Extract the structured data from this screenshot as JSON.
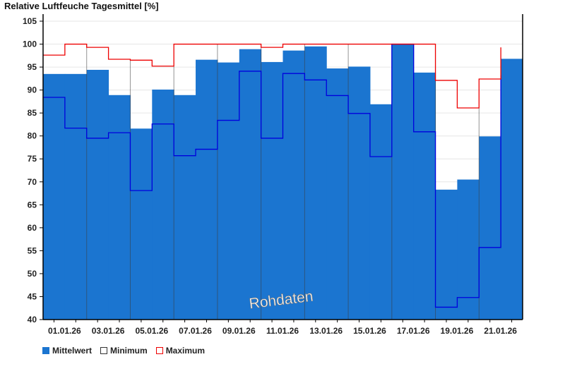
{
  "chart_data": {
    "type": "bar",
    "title": "Relative Luftfeuche Tagesmittel [%]",
    "xlabel": "",
    "ylabel": "",
    "ylim": [
      40,
      105
    ],
    "yticks": [
      40,
      45,
      50,
      55,
      60,
      65,
      70,
      75,
      80,
      85,
      90,
      95,
      100,
      105
    ],
    "grid": true,
    "categories": [
      "01.01.26",
      "02.01.26",
      "03.01.26",
      "04.01.26",
      "05.01.26",
      "06.01.26",
      "07.01.26",
      "08.01.26",
      "09.01.26",
      "10.01.26",
      "11.01.26",
      "12.01.26",
      "13.01.26",
      "14.01.26",
      "15.01.26",
      "16.01.26",
      "17.01.26",
      "18.01.26",
      "19.01.26",
      "20.01.26",
      "21.01.26",
      "22.01.26"
    ],
    "xtick_labels": [
      "01.01.26",
      "03.01.26",
      "05.01.26",
      "07.01.26",
      "09.01.26",
      "11.01.26",
      "13.01.26",
      "15.01.26",
      "17.01.26",
      "19.01.26",
      "21.01.26"
    ],
    "series": [
      {
        "name": "Mittelwert",
        "kind": "bar",
        "color": "#1b75d0",
        "values": [
          93.5,
          93.5,
          94.4,
          88.9,
          81.6,
          90.1,
          88.9,
          96.6,
          96.0,
          98.9,
          96.1,
          98.6,
          99.5,
          94.7,
          95.1,
          86.9,
          100.0,
          93.8,
          68.3,
          70.5,
          79.9,
          96.8
        ]
      },
      {
        "name": "Minimum",
        "kind": "step",
        "color": "#0000dd",
        "values": [
          88.4,
          81.7,
          79.5,
          80.7,
          68.1,
          82.6,
          75.7,
          77.1,
          83.4,
          94.1,
          79.5,
          93.6,
          92.2,
          88.8,
          84.9,
          75.5,
          100.0,
          80.9,
          42.7,
          44.8,
          55.7,
          93.2
        ]
      },
      {
        "name": "Maximum",
        "kind": "step",
        "color": "#ee0000",
        "values": [
          97.6,
          100,
          99.3,
          96.7,
          96.5,
          95.2,
          100,
          100,
          100,
          100,
          99.3,
          100,
          100,
          100,
          100,
          100,
          100,
          100,
          92.1,
          86.1,
          92.4,
          99.3
        ]
      }
    ],
    "legend_position": "bottom-left",
    "annotation": "Rohdaten"
  }
}
